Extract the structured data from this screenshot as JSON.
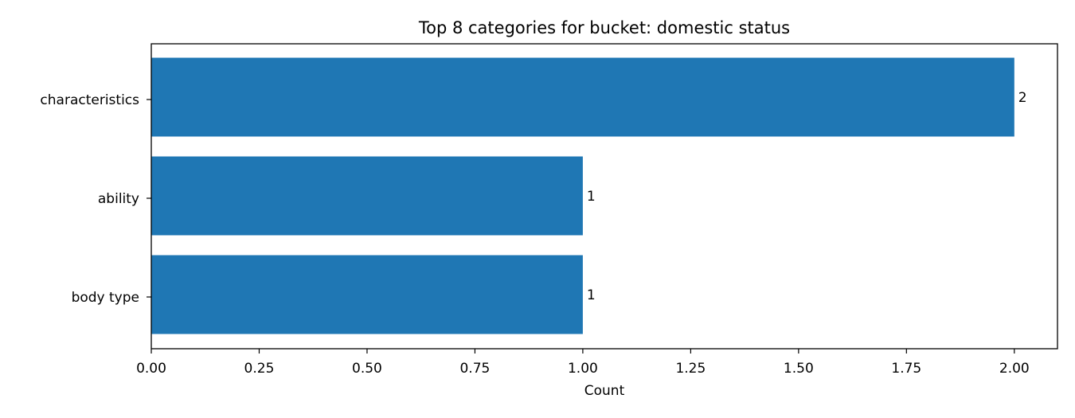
{
  "chart_data": {
    "type": "bar",
    "orientation": "horizontal",
    "title": "Top 8 categories for bucket: domestic status",
    "xlabel": "Count",
    "ylabel": "",
    "categories": [
      "characteristics",
      "ability",
      "body type"
    ],
    "values": [
      2,
      1,
      1
    ],
    "data_labels": [
      "2",
      "1",
      "1"
    ],
    "xlim": [
      0,
      2.1
    ],
    "xticks": [
      0,
      0.25,
      0.5,
      0.75,
      1.0,
      1.25,
      1.5,
      1.75,
      2.0
    ],
    "xtick_labels": [
      "0.00",
      "0.25",
      "0.50",
      "0.75",
      "1.00",
      "1.25",
      "1.50",
      "1.75",
      "2.00"
    ],
    "grid": false,
    "legend": "none",
    "bar_color": "#1f77b4"
  }
}
